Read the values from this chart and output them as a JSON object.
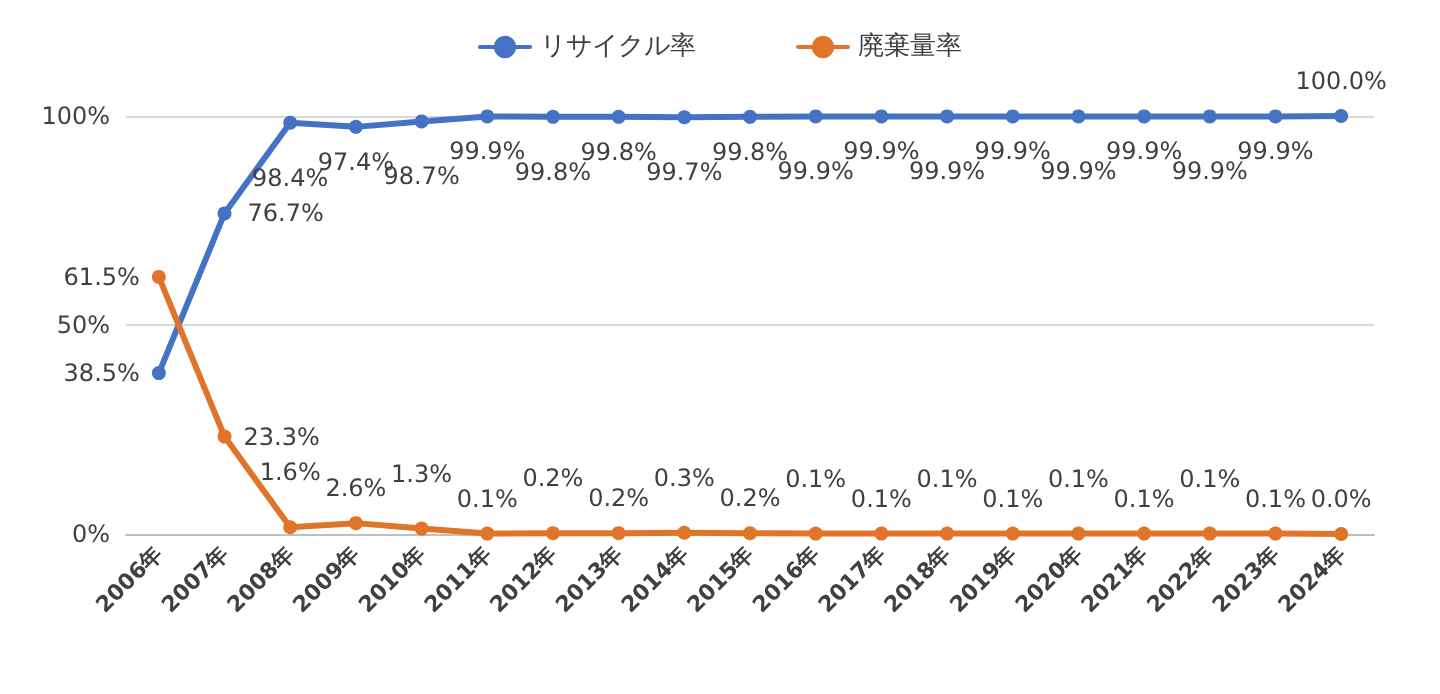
{
  "chart_data": {
    "type": "line",
    "categories": [
      "2006年",
      "2007年",
      "2008年",
      "2009年",
      "2010年",
      "2011年",
      "2012年",
      "2013年",
      "2014年",
      "2015年",
      "2016年",
      "2017年",
      "2018年",
      "2019年",
      "2020年",
      "2021年",
      "2022年",
      "2023年",
      "2024年"
    ],
    "series": [
      {
        "name": "リサイクル率",
        "color": "#4472c4",
        "values": [
          38.5,
          76.7,
          98.4,
          97.4,
          98.7,
          99.9,
          99.8,
          99.8,
          99.7,
          99.8,
          99.9,
          99.9,
          99.9,
          99.9,
          99.9,
          99.9,
          99.9,
          99.9,
          100.0
        ],
        "value_labels": [
          "38.5%",
          "76.7%",
          "98.4%",
          "97.4%",
          "98.7%",
          "99.9%",
          "99.8%",
          "99.8%",
          "99.7%",
          "99.8%",
          "99.9%",
          "99.9%",
          "99.9%",
          "99.9%",
          "99.9%",
          "99.9%",
          "99.9%",
          "99.9%",
          "100.0%"
        ]
      },
      {
        "name": "廃棄量率",
        "color": "#e07428",
        "values": [
          61.5,
          23.3,
          1.6,
          2.6,
          1.3,
          0.1,
          0.2,
          0.2,
          0.3,
          0.2,
          0.1,
          0.1,
          0.1,
          0.1,
          0.1,
          0.1,
          0.1,
          0.1,
          0.0
        ],
        "value_labels": [
          "61.5%",
          "23.3%",
          "1.6%",
          "2.6%",
          "1.3%",
          "0.1%",
          "0.2%",
          "0.2%",
          "0.3%",
          "0.2%",
          "0.1%",
          "0.1%",
          "0.1%",
          "0.1%",
          "0.1%",
          "0.1%",
          "0.1%",
          "0.1%",
          "0.0%"
        ]
      }
    ],
    "ylim": [
      0,
      100
    ],
    "yticks": [
      {
        "value": 0,
        "label": "0%"
      },
      {
        "value": 50,
        "label": "50%"
      },
      {
        "value": 100,
        "label": "100%"
      }
    ],
    "grid": "y",
    "legend": "top",
    "marker": "circle",
    "line_style": "solid"
  }
}
